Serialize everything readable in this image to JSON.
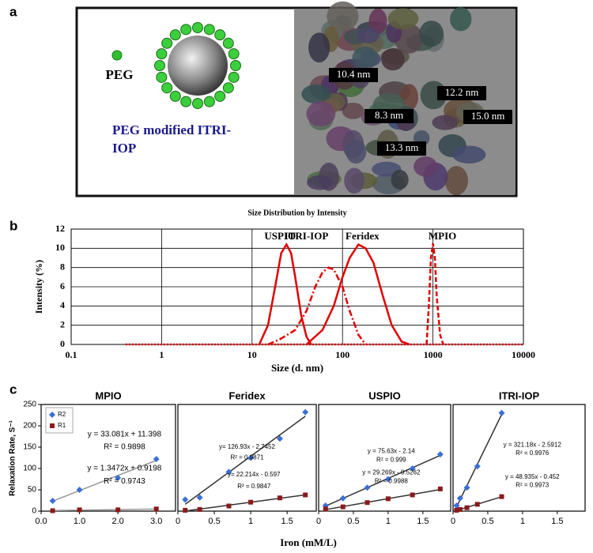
{
  "panel_labels": [
    "a",
    "b",
    "c"
  ],
  "panel_a": {
    "legend_label": "PEG",
    "caption": [
      "PEG modified ITRI-",
      "IOP"
    ],
    "size_labels": [
      "10.4 nm",
      "12.2 nm",
      "8.3 nm",
      "15.0 nm",
      "13.3 nm"
    ]
  },
  "chart_data": [
    {
      "type": "line",
      "title": "Size Distribution by Intensity",
      "x_label": "Size (d. nm)",
      "y_label": "Intensity (%)",
      "log_x": true,
      "grid": true,
      "xlim": [
        0.1,
        10000
      ],
      "xticks": [
        0.1,
        1,
        10,
        100,
        1000,
        10000
      ],
      "ylim": [
        0,
        12
      ],
      "yticks": [
        0,
        2,
        4,
        6,
        8,
        10,
        12
      ],
      "series": [
        {
          "name": "USPIO",
          "color": "#e00000",
          "style": "solid",
          "x": [
            12,
            15,
            18,
            21,
            24,
            27,
            30,
            35,
            40,
            45
          ],
          "values": [
            0,
            2,
            6,
            9.5,
            10.4,
            9.5,
            7,
            3,
            0.8,
            0
          ]
        },
        {
          "name": "ITRI-IOP",
          "color": "#e00000",
          "style": "dashdot",
          "x": [
            15,
            20,
            30,
            40,
            50,
            60,
            70,
            80,
            100,
            120,
            150,
            180
          ],
          "values": [
            0,
            0.5,
            1.5,
            3.5,
            6,
            7.5,
            8,
            7.8,
            6,
            3.5,
            1,
            0
          ]
        },
        {
          "name": "Feridex",
          "color": "#e00000",
          "style": "solid",
          "x": [
            40,
            60,
            80,
            100,
            120,
            150,
            180,
            220,
            280,
            350,
            450,
            550
          ],
          "values": [
            0,
            1.5,
            4,
            7,
            9,
            10.4,
            10,
            8.5,
            5,
            2,
            0.3,
            0
          ]
        },
        {
          "name": "MPIO",
          "color": "#e00000",
          "style": "dash",
          "x": [
            850,
            900,
            950,
            1000,
            1050,
            1100,
            1200,
            1300
          ],
          "values": [
            0,
            4,
            9,
            10.5,
            9,
            5,
            1,
            0
          ]
        },
        {
          "color": "#e00000",
          "style": "dot",
          "x": [
            0.4,
            10000
          ],
          "values": [
            0,
            0
          ]
        }
      ]
    },
    {
      "type": "scatter",
      "title": "MPIO",
      "y_label": "Relaxation Rate, S⁻¹",
      "x_label": "Iron (mM/L)",
      "xlim": [
        0,
        3.5
      ],
      "xticks": [
        {
          "value": 0,
          "label": "0.0"
        },
        {
          "value": 1,
          "label": "1.0"
        },
        {
          "value": 2,
          "label": "2.0"
        },
        {
          "value": 3,
          "label": "3.0"
        }
      ],
      "ylim": [
        0,
        250
      ],
      "yticks": [
        0,
        50,
        100,
        150,
        200,
        250
      ],
      "legend": "top-left",
      "series": [
        {
          "name": "R2",
          "color": "#3b6fd4",
          "fit_color": "#999999",
          "x": [
            0.3,
            1.0,
            2.0,
            3.0
          ],
          "values": [
            24,
            50,
            78,
            122
          ]
        },
        {
          "name": "R1",
          "color": "#8b1a1a",
          "fit_color": "#999999",
          "x": [
            0.3,
            1.0,
            2.0,
            3.0
          ],
          "values": [
            1,
            3,
            3,
            5
          ]
        }
      ],
      "annotations": [
        "y = 33.081x + 11.398",
        "R² = 0.9898",
        "y = 1.3472x + 0.9198",
        "R² = 0.9743"
      ]
    },
    {
      "type": "scatter",
      "title": "Feridex",
      "xlim": [
        0,
        1.9
      ],
      "xticks": [
        0,
        0.5,
        1,
        1.5
      ],
      "ylim": [
        0,
        250
      ],
      "series": [
        {
          "color": "#3b6fd4",
          "fit_color": "#333333",
          "x": [
            0.1,
            0.3,
            0.7,
            1.0,
            1.4,
            1.75
          ],
          "values": [
            27,
            32,
            92,
            125,
            170,
            232
          ]
        },
        {
          "color": "#8b1a1a",
          "fit_color": "#333333",
          "x": [
            0.1,
            0.3,
            0.7,
            1.0,
            1.4,
            1.75
          ],
          "values": [
            2,
            4,
            12,
            21,
            31,
            38
          ]
        }
      ],
      "annotations": [
        "y= 126.93x - 2.7452",
        "R² = 0.9871",
        "y= 22.214x - 0.597",
        "R² = 0.9847"
      ]
    },
    {
      "type": "scatter",
      "title": "USPIO",
      "xlim": [
        0,
        1.9
      ],
      "xticks": [
        0,
        0.5,
        1,
        1.5
      ],
      "ylim": [
        0,
        250
      ],
      "series": [
        {
          "color": "#3b6fd4",
          "fit_color": "#333333",
          "x": [
            0.1,
            0.35,
            0.7,
            1.0,
            1.35,
            1.75
          ],
          "values": [
            13,
            30,
            55,
            75,
            100,
            133
          ]
        },
        {
          "color": "#8b1a1a",
          "fit_color": "#333333",
          "x": [
            0.1,
            0.35,
            0.7,
            1.0,
            1.35,
            1.75
          ],
          "values": [
            5,
            10,
            20,
            29,
            38,
            52
          ]
        }
      ],
      "annotations": [
        "y = 75.63x - 2.14",
        "R² = 0.999",
        "y = 29.269x - 0.5262",
        "R² = 0.9988"
      ]
    },
    {
      "type": "scatter",
      "title": "ITRI-IOP",
      "xlim": [
        0,
        1.9
      ],
      "xticks": [
        0,
        0.5,
        1,
        1.5
      ],
      "ylim": [
        0,
        250
      ],
      "series": [
        {
          "color": "#3b6fd4",
          "fit_color": "#333333",
          "x": [
            0.05,
            0.1,
            0.2,
            0.35,
            0.7
          ],
          "values": [
            13,
            30,
            55,
            105,
            230
          ]
        },
        {
          "color": "#8b1a1a",
          "fit_color": "#333333",
          "x": [
            0.05,
            0.1,
            0.2,
            0.35,
            0.7
          ],
          "values": [
            2,
            4,
            8,
            16,
            34
          ]
        }
      ],
      "annotations": [
        "y = 321.18x - 2.5912",
        "R² = 0.9976",
        "y = 48.935x - 0.452",
        "R² = 0.9973"
      ]
    }
  ]
}
